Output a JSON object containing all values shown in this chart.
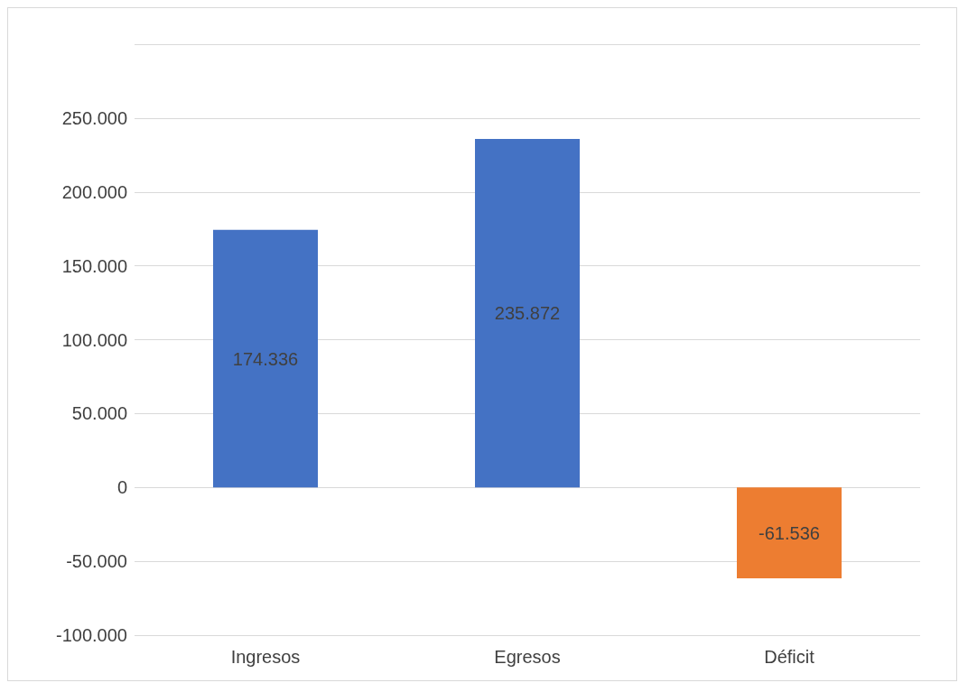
{
  "chart_data": {
    "type": "bar",
    "categories": [
      "Ingresos",
      "Egresos",
      "Déficit"
    ],
    "values": [
      174336,
      235872,
      -61536
    ],
    "colors": [
      "#4472c4",
      "#4472c4",
      "#ed7d31"
    ],
    "value_labels": [
      "174.336",
      "235.872",
      "-61.536"
    ],
    "ylim": [
      -100000,
      300000
    ],
    "yticks": [
      {
        "value": -100000,
        "label": "-100.000"
      },
      {
        "value": -50000,
        "label": "-50.000"
      },
      {
        "value": 0,
        "label": "0"
      },
      {
        "value": 50000,
        "label": "50.000"
      },
      {
        "value": 100000,
        "label": "100.000"
      },
      {
        "value": 150000,
        "label": "150.000"
      },
      {
        "value": 200000,
        "label": "200.000"
      },
      {
        "value": 250000,
        "label": "250.000"
      },
      {
        "value": 300000,
        "label": null
      }
    ],
    "grid": true
  }
}
